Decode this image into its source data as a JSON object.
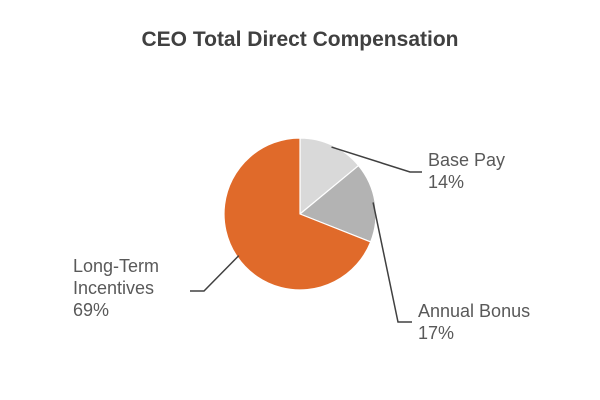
{
  "chart_data": {
    "type": "pie",
    "title": "CEO Total Direct Compensation",
    "slices": [
      {
        "name": "Base Pay",
        "value": 14,
        "value_label": "14%",
        "color": "#d9d9d9"
      },
      {
        "name": "Annual Bonus",
        "value": 17,
        "value_label": "17%",
        "color": "#b3b3b3"
      },
      {
        "name": "Long-Term Incentives",
        "value": 69,
        "value_label": "69%",
        "color": "#e06a2a"
      }
    ],
    "start_angle_deg": 0,
    "direction": "clockwise",
    "labels_outside": true
  }
}
